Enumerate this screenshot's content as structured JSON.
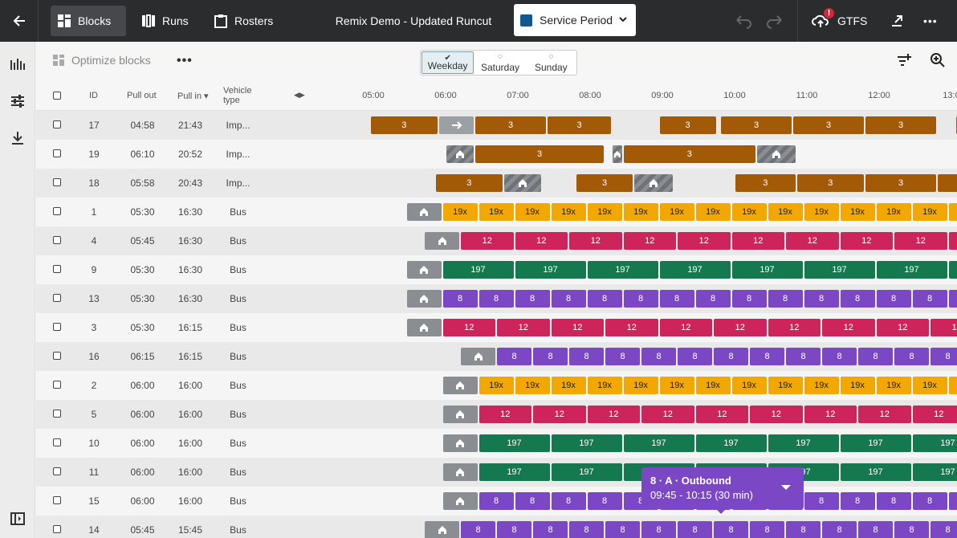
{
  "topbar": {
    "back_icon": "arrow-left-icon",
    "nav": [
      {
        "label": "Blocks",
        "icon": "blocks-icon",
        "active": true
      },
      {
        "label": "Runs",
        "icon": "runs-icon",
        "active": false
      },
      {
        "label": "Rosters",
        "icon": "clipboard-icon",
        "active": false
      }
    ],
    "title": "Remix Demo - Updated Runcut",
    "service_period": {
      "label": "Service Period",
      "color": "#13578e"
    },
    "gtfs_label": "GTFS",
    "gtfs_alert": "!"
  },
  "toolbar": {
    "optimize_label": "Optimize blocks",
    "more": "•••",
    "days": [
      {
        "label": "Weekday",
        "selected": true,
        "mark": "✔"
      },
      {
        "label": "Saturday",
        "selected": false,
        "mark": "◌"
      },
      {
        "label": "Sunday",
        "selected": false,
        "mark": "◌"
      }
    ]
  },
  "header": {
    "id": "ID",
    "pull_out": "Pull out",
    "pull_in": "Pull in",
    "vehicle_type": [
      "Vehicle",
      "type"
    ],
    "times": [
      "05:00",
      "06:00",
      "07:00",
      "08:00",
      "09:00",
      "10:00",
      "11:00",
      "12:00",
      "13:0"
    ]
  },
  "rows": [
    {
      "id": "17",
      "out": "04:58",
      "in": "21:43",
      "type": "Imp..."
    },
    {
      "id": "19",
      "out": "06:10",
      "in": "20:52",
      "type": "Imp..."
    },
    {
      "id": "18",
      "out": "05:58",
      "in": "20:43",
      "type": "Imp..."
    },
    {
      "id": "1",
      "out": "05:30",
      "in": "16:30",
      "type": "Bus"
    },
    {
      "id": "4",
      "out": "05:45",
      "in": "16:30",
      "type": "Bus"
    },
    {
      "id": "9",
      "out": "05:30",
      "in": "16:30",
      "type": "Bus"
    },
    {
      "id": "13",
      "out": "05:30",
      "in": "16:30",
      "type": "Bus"
    },
    {
      "id": "3",
      "out": "05:30",
      "in": "16:15",
      "type": "Bus"
    },
    {
      "id": "16",
      "out": "06:15",
      "in": "16:15",
      "type": "Bus"
    },
    {
      "id": "2",
      "out": "06:00",
      "in": "16:00",
      "type": "Bus"
    },
    {
      "id": "5",
      "out": "06:00",
      "in": "16:00",
      "type": "Bus"
    },
    {
      "id": "10",
      "out": "06:00",
      "in": "16:00",
      "type": "Bus"
    },
    {
      "id": "11",
      "out": "06:00",
      "in": "16:00",
      "type": "Bus"
    },
    {
      "id": "15",
      "out": "06:00",
      "in": "16:00",
      "type": "Bus"
    },
    {
      "id": "14",
      "out": "05:45",
      "in": "15:45",
      "type": "Bus"
    }
  ],
  "route_colors": {
    "3": "#a35a07",
    "19x": "#f2a800",
    "12": "#cc245b",
    "197": "#14794e",
    "8": "#7b47c5"
  },
  "route_labels": {
    "r3": "3",
    "r19x": "19x",
    "r12": "12",
    "r197": "197",
    "r8": "8"
  },
  "tooltip": {
    "title": "8 · A · Outbound",
    "time": "09:45 - 10:15 (30 min)"
  }
}
